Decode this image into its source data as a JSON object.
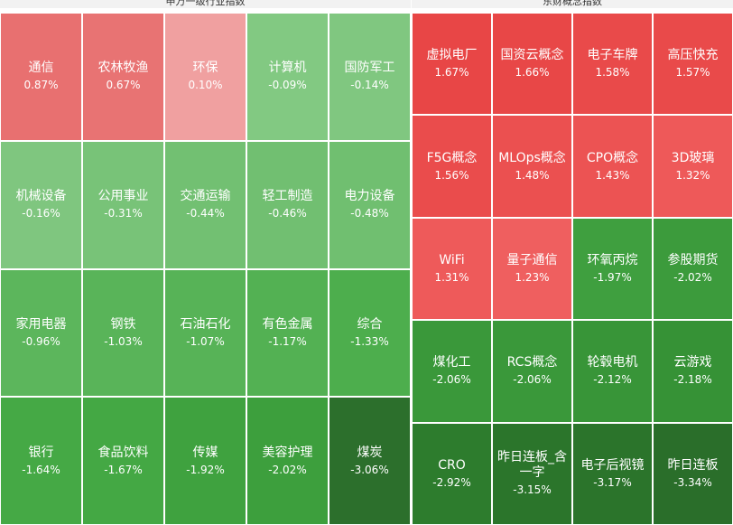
{
  "panels": [
    {
      "title": "申万一级行业指数",
      "columns": 5,
      "tiles": [
        {
          "label": "通信",
          "value": "0.87%",
          "color": "#e87070"
        },
        {
          "label": "农林牧渔",
          "value": "0.67%",
          "color": "#e87373"
        },
        {
          "label": "环保",
          "value": "0.10%",
          "color": "#f0a0a0"
        },
        {
          "label": "计算机",
          "value": "-0.09%",
          "color": "#82c982"
        },
        {
          "label": "国防军工",
          "value": "-0.14%",
          "color": "#80c780"
        },
        {
          "label": "机械设备",
          "value": "-0.16%",
          "color": "#7fc67f"
        },
        {
          "label": "公用事业",
          "value": "-0.31%",
          "color": "#78c378"
        },
        {
          "label": "交通运输",
          "value": "-0.44%",
          "color": "#72c072"
        },
        {
          "label": "轻工制造",
          "value": "-0.46%",
          "color": "#71bf71"
        },
        {
          "label": "电力设备",
          "value": "-0.48%",
          "color": "#70bf70"
        },
        {
          "label": "家用电器",
          "value": "-0.96%",
          "color": "#5cb65c"
        },
        {
          "label": "钢铁",
          "value": "-1.03%",
          "color": "#59b459"
        },
        {
          "label": "石油石化",
          "value": "-1.07%",
          "color": "#57b357"
        },
        {
          "label": "有色金属",
          "value": "-1.17%",
          "color": "#53b153"
        },
        {
          "label": "综合",
          "value": "-1.33%",
          "color": "#4dae4d"
        },
        {
          "label": "银行",
          "value": "-1.64%",
          "color": "#45a945"
        },
        {
          "label": "食品饮料",
          "value": "-1.67%",
          "color": "#44a844"
        },
        {
          "label": "传媒",
          "value": "-1.92%",
          "color": "#3fa23f"
        },
        {
          "label": "美容护理",
          "value": "-2.02%",
          "color": "#3d9f3d"
        },
        {
          "label": "煤炭",
          "value": "-3.06%",
          "color": "#2c6f2c"
        }
      ]
    },
    {
      "title": "东财概念指数",
      "columns": 4,
      "tiles": [
        {
          "label": "虚拟电厂",
          "value": "1.67%",
          "color": "#e84646"
        },
        {
          "label": "国资云概念",
          "value": "1.66%",
          "color": "#e84747"
        },
        {
          "label": "电子车牌",
          "value": "1.58%",
          "color": "#e94a4a"
        },
        {
          "label": "高压快充",
          "value": "1.57%",
          "color": "#e94a4a"
        },
        {
          "label": "F5G概念",
          "value": "1.56%",
          "color": "#ea4c4c"
        },
        {
          "label": "MLOps概念",
          "value": "1.48%",
          "color": "#eb5050"
        },
        {
          "label": "CPO概念",
          "value": "1.43%",
          "color": "#ec5353"
        },
        {
          "label": "3D玻璃",
          "value": "1.32%",
          "color": "#ee5959"
        },
        {
          "label": "WiFi",
          "value": "1.31%",
          "color": "#ee5a5a"
        },
        {
          "label": "量子通信",
          "value": "1.23%",
          "color": "#ef5f5f"
        },
        {
          "label": "环氧丙烷",
          "value": "-1.97%",
          "color": "#3f9f3f"
        },
        {
          "label": "参股期货",
          "value": "-2.02%",
          "color": "#3c9b3c"
        },
        {
          "label": "煤化工",
          "value": "-2.06%",
          "color": "#3a983a"
        },
        {
          "label": "RCS概念",
          "value": "-2.06%",
          "color": "#3a983a"
        },
        {
          "label": "轮毂电机",
          "value": "-2.12%",
          "color": "#389538"
        },
        {
          "label": "云游戏",
          "value": "-2.18%",
          "color": "#369236"
        },
        {
          "label": "CRO",
          "value": "-2.92%",
          "color": "#2d7c2d"
        },
        {
          "label": "昨日连板_含一字",
          "value": "-3.15%",
          "color": "#2b752b"
        },
        {
          "label": "电子后视镜",
          "value": "-3.17%",
          "color": "#2b742b"
        },
        {
          "label": "昨日连板",
          "value": "-3.34%",
          "color": "#2a6e2a"
        }
      ]
    }
  ]
}
